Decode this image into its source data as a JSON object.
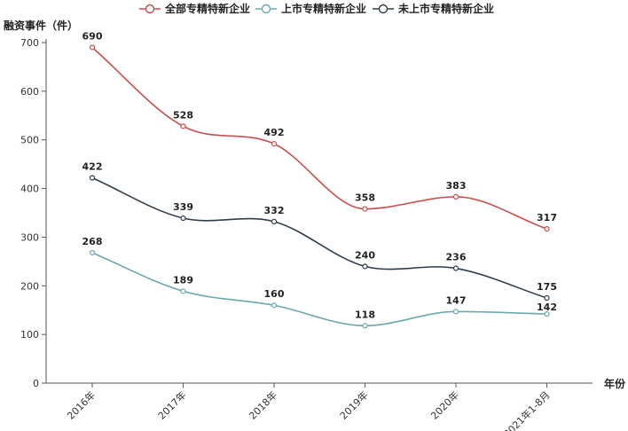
{
  "chart_data": {
    "type": "line",
    "ylabel": "融资事件（件）",
    "xlabel": "年份",
    "categories": [
      "2016年",
      "2017年",
      "2018年",
      "2019年",
      "2020年",
      "2021年1-8月"
    ],
    "ylim": [
      0,
      700
    ],
    "yticks": [
      0,
      100,
      200,
      300,
      400,
      500,
      600,
      700
    ],
    "grid": false,
    "legend_position": "top",
    "series": [
      {
        "name": "全部专精特新企业",
        "color": "#c94e4e",
        "values": [
          690,
          528,
          492,
          358,
          383,
          317
        ]
      },
      {
        "name": "上市专精特新企业",
        "color": "#6aa8ad",
        "values": [
          268,
          189,
          160,
          118,
          147,
          142
        ]
      },
      {
        "name": "未上市专精特新企业",
        "color": "#2f3e4c",
        "values": [
          422,
          339,
          332,
          240,
          236,
          175
        ]
      }
    ]
  }
}
